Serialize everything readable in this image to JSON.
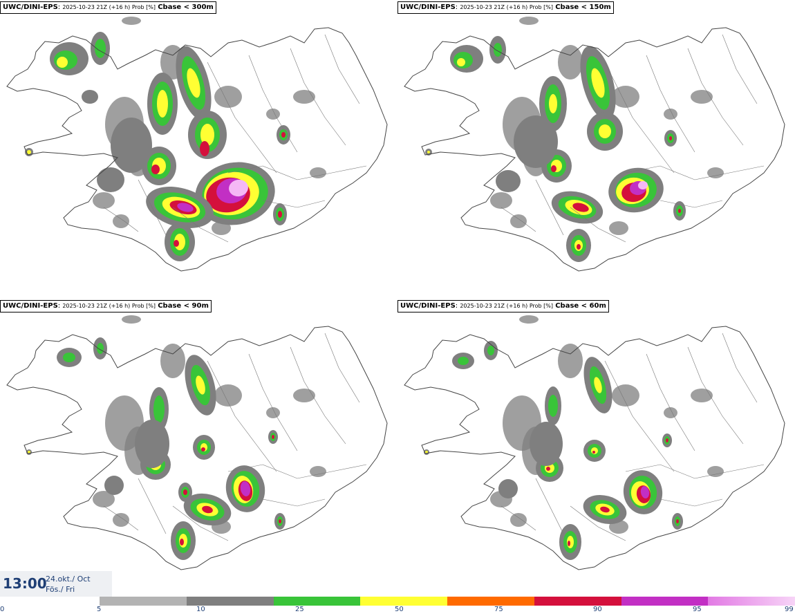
{
  "panels": [
    {
      "model": "UWC/DINI-EPS",
      "meta": "2025-10-23 21Z (+16 h) Prob [%]",
      "variable": "Cbase < 300m"
    },
    {
      "model": "UWC/DINI-EPS",
      "meta": "2025-10-23 21Z (+16 h) Prob [%]",
      "variable": "Cbase < 150m"
    },
    {
      "model": "UWC/DINI-EPS",
      "meta": "2025-10-23 21Z (+16 h) Prob [%]",
      "variable": "Cbase < 90m"
    },
    {
      "model": "UWC/DINI-EPS",
      "meta": "2025-10-23 21Z (+16 h) Prob [%]",
      "variable": "Cbase < 60m"
    }
  ],
  "valid_time": {
    "time": "13:00",
    "date_line1": "24.okt./ Oct",
    "date_line2": "Fös./ Fri"
  },
  "colorbar": {
    "ticks": [
      "0",
      "5",
      "10",
      "25",
      "50",
      "75",
      "90",
      "95",
      "99"
    ],
    "colors": [
      "#b3b3b3",
      "#7f7f7f",
      "#39c439",
      "#ffff33",
      "#ff6a00",
      "#d4103c",
      "#c22fc4",
      "#f5b8f5"
    ]
  }
}
